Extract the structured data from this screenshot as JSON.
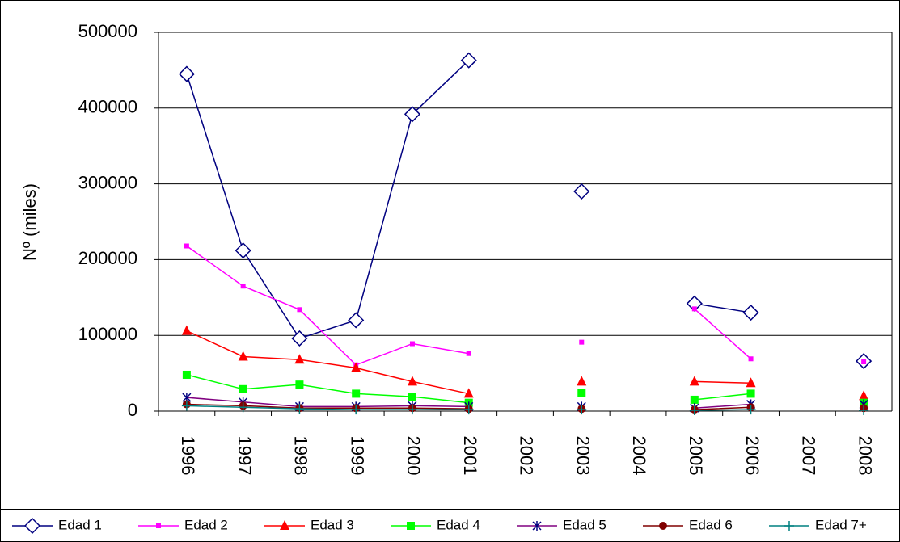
{
  "chart_data": {
    "type": "line",
    "y_label": "Nº (miles)",
    "categories": [
      "1996",
      "1997",
      "1998",
      "1999",
      "2000",
      "2001",
      "2002",
      "2003",
      "2004",
      "2005",
      "2006",
      "2007",
      "2008"
    ],
    "ylim": [
      0,
      500000
    ],
    "yticks": [
      0,
      100000,
      200000,
      300000,
      400000,
      500000
    ],
    "grid": true,
    "series": [
      {
        "name": "Edad 1",
        "color": "#000080",
        "marker": "diamond",
        "values": [
          445000,
          212000,
          96000,
          120000,
          392000,
          463000,
          null,
          290000,
          null,
          142000,
          130000,
          null,
          66000
        ]
      },
      {
        "name": "Edad 2",
        "color": "#ff00ff",
        "marker": "small-square",
        "values": [
          218000,
          165000,
          134000,
          61000,
          89000,
          76000,
          null,
          91000,
          null,
          135000,
          69000,
          null,
          65000
        ]
      },
      {
        "name": "Edad 3",
        "color": "#ff0000",
        "marker": "triangle",
        "values": [
          106000,
          72000,
          68000,
          57000,
          39000,
          23000,
          null,
          39000,
          null,
          39000,
          37000,
          null,
          20000
        ]
      },
      {
        "name": "Edad 4",
        "color": "#00ff00",
        "marker": "square",
        "values": [
          48000,
          29000,
          35000,
          23000,
          19000,
          11000,
          null,
          24000,
          null,
          15000,
          23000,
          null,
          11000
        ]
      },
      {
        "name": "Edad 5",
        "color": "#800080",
        "marker": "star",
        "values": [
          18000,
          12000,
          6000,
          6000,
          7000,
          6000,
          null,
          6000,
          null,
          4000,
          9000,
          null,
          9000
        ]
      },
      {
        "name": "Edad 6",
        "color": "#800000",
        "marker": "circle",
        "values": [
          9000,
          7000,
          4000,
          4000,
          4000,
          3000,
          null,
          3000,
          null,
          2000,
          5000,
          null,
          4000
        ]
      },
      {
        "name": "Edad 7+",
        "color": "#008080",
        "marker": "plus",
        "values": [
          7000,
          5000,
          3000,
          2000,
          2000,
          2000,
          null,
          2000,
          null,
          1000,
          2000,
          null,
          1000
        ]
      }
    ]
  }
}
